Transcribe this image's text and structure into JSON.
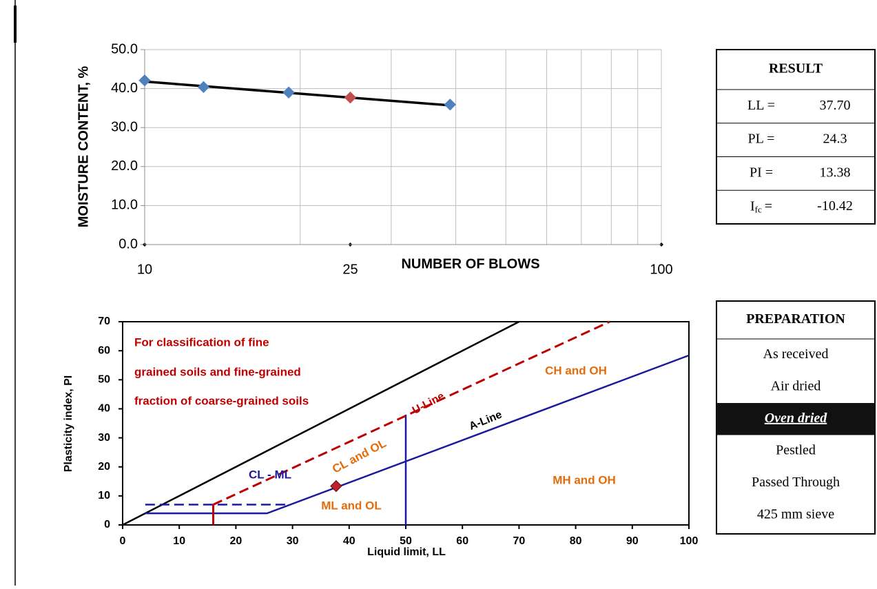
{
  "chart_data": [
    {
      "type": "scatter",
      "x_label": "NUMBER OF BLOWS",
      "y_label": "MOISTURE CONTENT, %",
      "xscale": "log",
      "xlim": [
        10,
        100
      ],
      "xticks": [
        10,
        25,
        100
      ],
      "x_gridlines": [
        10,
        20,
        30,
        40,
        50,
        60,
        70,
        80,
        90,
        100
      ],
      "ylim": [
        0,
        50
      ],
      "yticks": [
        {
          "value": 0,
          "label": "0.0"
        },
        {
          "value": 10,
          "label": "10.0"
        },
        {
          "value": 20,
          "label": "20.0"
        },
        {
          "value": 30,
          "label": "30.0"
        },
        {
          "value": 40,
          "label": "40.0"
        },
        {
          "value": 50,
          "label": "50.0"
        }
      ],
      "grid": true,
      "series": [
        {
          "color": "#4f81bd",
          "marker": "diamond",
          "x": [
            10,
            13,
            19,
            39
          ],
          "values": [
            42.1,
            40.4,
            39.0,
            35.9
          ]
        },
        {
          "color": "#c0504d",
          "marker": "diamond",
          "x": [
            25
          ],
          "values": [
            37.7
          ]
        },
        {
          "color": "#000000",
          "marker": "none",
          "line": "solid",
          "width": 3.5,
          "x": [
            10,
            39
          ],
          "values": [
            41.8,
            35.7
          ]
        }
      ]
    },
    {
      "type": "line",
      "x_label": "Liquid limit, LL",
      "y_label": "Plasticity index, PI",
      "xlim": [
        0,
        100
      ],
      "xticks": [
        0,
        10,
        20,
        30,
        40,
        50,
        60,
        70,
        80,
        90,
        100
      ],
      "ylim": [
        0,
        70
      ],
      "yticks": [
        0,
        10,
        20,
        30,
        40,
        50,
        60,
        70
      ],
      "grid": false,
      "series": [
        {
          "color": "#000000",
          "marker": "none",
          "line": "solid",
          "width": 2.5,
          "x": [
            0,
            70
          ],
          "values": [
            0,
            70
          ]
        },
        {
          "color": "#1a1a9e",
          "marker": "none",
          "line": "solid",
          "width": 2.5,
          "x": [
            4,
            25.5,
            100
          ],
          "values": [
            4,
            4,
            58.4
          ]
        },
        {
          "color": "#1a1a9e",
          "marker": "none",
          "line": "solid",
          "width": 2.5,
          "x": [
            50,
            50
          ],
          "values": [
            0,
            38
          ]
        },
        {
          "color": "#1a1a9e",
          "marker": "none",
          "line": "dashed",
          "width": 2.5,
          "x": [
            4,
            29.5
          ],
          "values": [
            7,
            7
          ]
        },
        {
          "color": "#c00000",
          "marker": "none",
          "line": "dashed",
          "width": 3,
          "x": [
            16,
            86
          ],
          "values": [
            7,
            70
          ]
        },
        {
          "color": "#c00000",
          "marker": "none",
          "line": "solid",
          "width": 3,
          "x": [
            16,
            16
          ],
          "values": [
            0,
            7
          ]
        },
        {
          "color": "#c0202a",
          "marker": "diamond",
          "x": [
            37.7
          ],
          "values": [
            13.38
          ]
        }
      ],
      "annotations": [
        {
          "text": "For classification of fine",
          "color": "#c00000"
        },
        {
          "text": "grained soils and fine-grained",
          "color": "#c00000"
        },
        {
          "text": "fraction of coarse-grained soils",
          "color": "#c00000"
        },
        {
          "text": "U-Line",
          "color": "#c00000"
        },
        {
          "text": "A-Line",
          "color": "#000000"
        },
        {
          "text": "CH and OH",
          "color": "#e46c0a"
        },
        {
          "text": "CL and OL",
          "color": "#e46c0a"
        },
        {
          "text": "CL - ML",
          "color": "#1a1a9e"
        },
        {
          "text": "ML and OL",
          "color": "#e46c0a"
        },
        {
          "text": "MH and OH",
          "color": "#e46c0a"
        }
      ]
    }
  ],
  "result_table": {
    "title": "RESULT",
    "rows": [
      {
        "label": "LL =",
        "value": "37.70"
      },
      {
        "label": "PL =",
        "value": "24.3"
      },
      {
        "label": "PI =",
        "value": "13.38"
      },
      {
        "label": "I",
        "label_sub": "fc",
        "label_eq": "=",
        "value": "-10.42"
      }
    ]
  },
  "preparation_table": {
    "title": "PREPARATION",
    "selected": 2,
    "items": [
      "As received",
      "Air dried",
      "Oven dried",
      "Pestled",
      "Passed Through",
      "425 mm sieve"
    ]
  }
}
